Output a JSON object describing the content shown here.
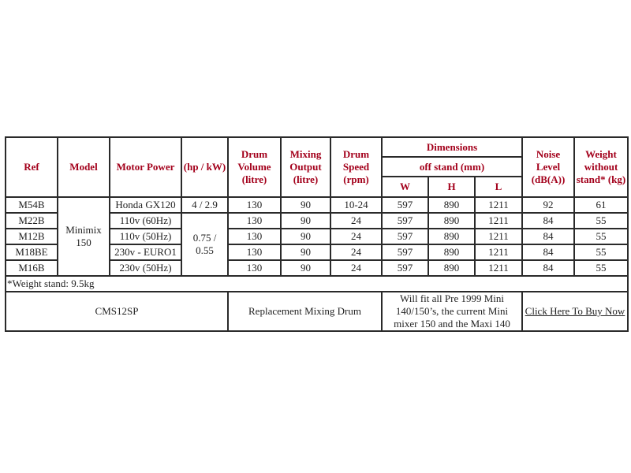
{
  "headers": {
    "ref": "Ref",
    "model": "Model",
    "motor_power": "Motor Power",
    "hp_kw": "(hp / kW)",
    "drum_volume": "Drum Volume (litre)",
    "mixing_output": "Mixing Output (litre)",
    "drum_speed": "Drum Speed (rpm)",
    "dimensions": "Dimensions",
    "off_stand": "off stand (mm)",
    "w": "W",
    "h": "H",
    "l": "L",
    "noise_level": "Noise Level (dB(A))",
    "weight": "Weight without stand* (kg)"
  },
  "model": "Minimix 150",
  "hp_kw_shared": "0.75 / 0.55",
  "rows": [
    {
      "ref": "M54B",
      "motor": "Honda GX120",
      "hp": "4 / 2.9",
      "volume": "130",
      "output": "90",
      "speed": "10-24",
      "w": "597",
      "h": "890",
      "l": "1211",
      "noise": "92",
      "weight": "61"
    },
    {
      "ref": "M22B",
      "motor": "110v (60Hz)",
      "volume": "130",
      "output": "90",
      "speed": "24",
      "w": "597",
      "h": "890",
      "l": "1211",
      "noise": "84",
      "weight": "55"
    },
    {
      "ref": "M12B",
      "motor": "110v (50Hz)",
      "volume": "130",
      "output": "90",
      "speed": "24",
      "w": "597",
      "h": "890",
      "l": "1211",
      "noise": "84",
      "weight": "55"
    },
    {
      "ref": "M18BE",
      "motor": "230v - EURO1",
      "volume": "130",
      "output": "90",
      "speed": "24",
      "w": "597",
      "h": "890",
      "l": "1211",
      "noise": "84",
      "weight": "55"
    },
    {
      "ref": "M16B",
      "motor": "230v (50Hz)",
      "volume": "130",
      "output": "90",
      "speed": "24",
      "w": "597",
      "h": "890",
      "l": "1211",
      "noise": "84",
      "weight": "55"
    }
  ],
  "note": "*Weight stand: 9.5kg",
  "accessory": {
    "code": "CMS12SP",
    "name": "Replacement Mixing Drum",
    "fits": "Will fit all Pre 1999 Mini 140/150’s, the current Mini mixer 150 and the Maxi 140",
    "link": "Click Here To Buy Now"
  },
  "colors": {
    "header_text": "#a3001b",
    "border": "#2a2a2a"
  }
}
